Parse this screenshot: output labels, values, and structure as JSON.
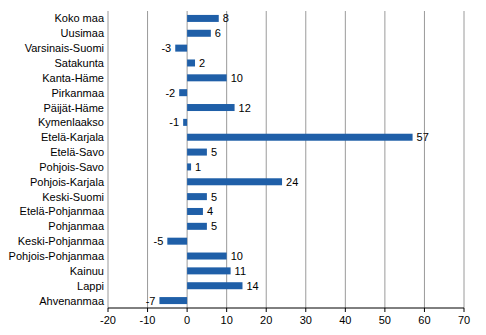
{
  "chart_data": {
    "type": "bar",
    "orientation": "horizontal",
    "categories": [
      "Koko maa",
      "Uusimaa",
      "Varsinais-Suomi",
      "Satakunta",
      "Kanta-Häme",
      "Pirkanmaa",
      "Päijät-Häme",
      "Kymenlaakso",
      "Etelä-Karjala",
      "Etelä-Savo",
      "Pohjois-Savo",
      "Pohjois-Karjala",
      "Keski-Suomi",
      "Etelä-Pohjanmaa",
      "Pohjanmaa",
      "Keski-Pohjanmaa",
      "Pohjois-Pohjanmaa",
      "Kainuu",
      "Lappi",
      "Ahvenanmaa"
    ],
    "values": [
      8,
      6,
      -3,
      2,
      10,
      -2,
      12,
      -1,
      57,
      5,
      1,
      24,
      5,
      4,
      5,
      -5,
      10,
      11,
      14,
      -7
    ],
    "color": "#1f5fa8",
    "xlim": [
      -20,
      70
    ],
    "xticks": [
      -20,
      -10,
      0,
      10,
      20,
      30,
      40,
      50,
      60,
      70
    ],
    "grid": true,
    "data_labels": true
  }
}
